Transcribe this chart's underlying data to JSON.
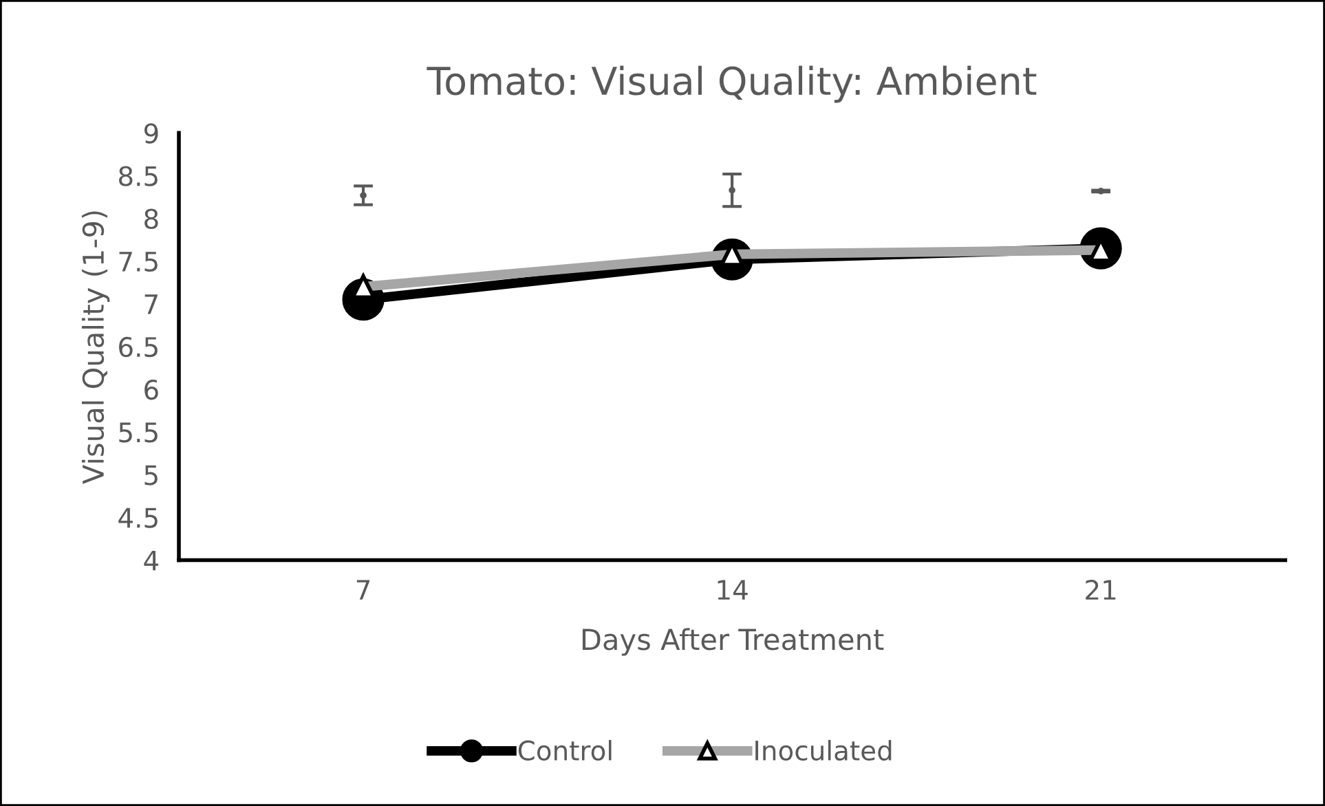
{
  "chart_data": {
    "type": "line",
    "title": "Tomato: Visual Quality: Ambient",
    "xlabel": "Days After Treatment",
    "ylabel": "Visual Quality (1-9)",
    "categories": [
      "7",
      "14",
      "21"
    ],
    "series": [
      {
        "name": "Control",
        "color": "#000000",
        "marker": "circle",
        "values": [
          7.05,
          7.52,
          7.65
        ]
      },
      {
        "name": "Inoculated",
        "color": "#a6a6a6",
        "marker": "triangle",
        "values": [
          7.2,
          7.58,
          7.63
        ]
      },
      {
        "type": "scatter",
        "color": "#595959",
        "marker": "none",
        "values": [
          8.27,
          8.33,
          8.32
        ],
        "errors": [
          0.11,
          0.19,
          0.01
        ]
      }
    ],
    "ylim": [
      4,
      9
    ],
    "yticks": [
      4,
      4.5,
      5,
      5.5,
      6,
      6.5,
      7,
      7.5,
      8,
      8.5,
      9
    ],
    "grid": false,
    "legend": "bottom"
  }
}
